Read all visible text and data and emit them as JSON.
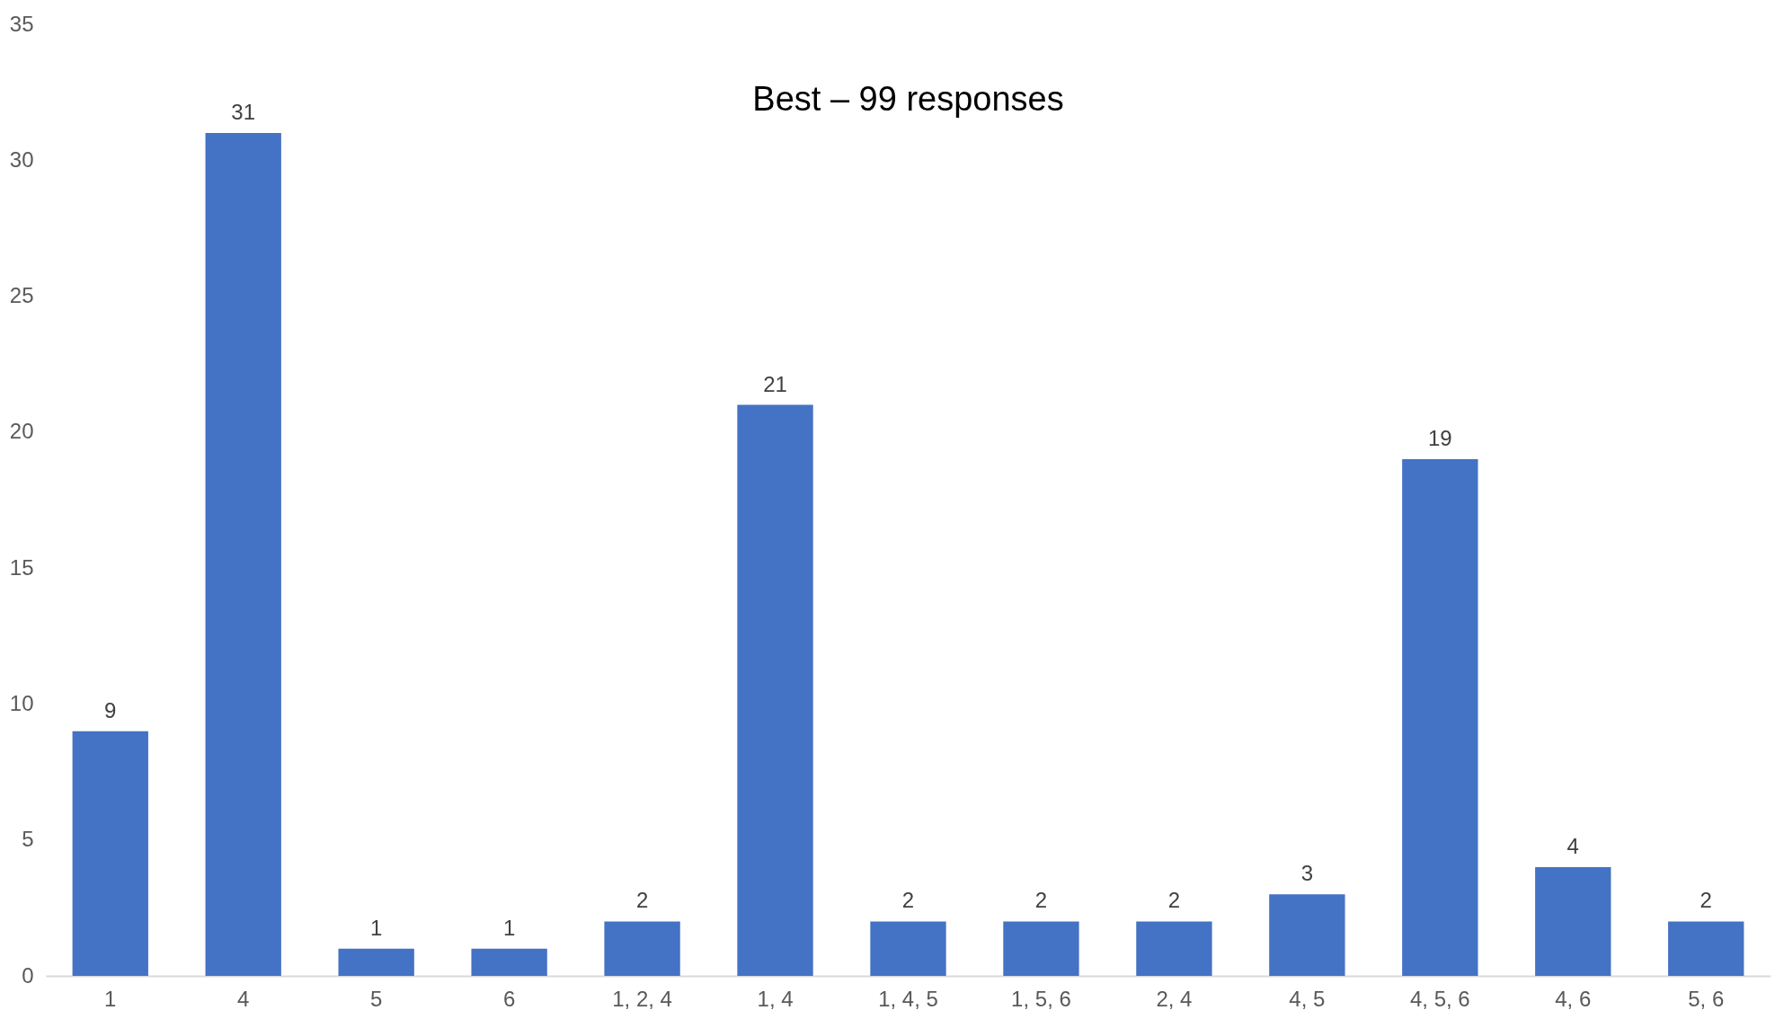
{
  "chart_data": {
    "type": "bar",
    "title": "Best – 99 responses",
    "categories": [
      "1",
      "4",
      "5",
      "6",
      "1, 2, 4",
      "1, 4",
      "1, 4, 5",
      "1, 5, 6",
      "2, 4",
      "4, 5",
      "4, 5, 6",
      "4, 6",
      "5, 6"
    ],
    "values": [
      9,
      31,
      1,
      1,
      2,
      21,
      2,
      2,
      2,
      3,
      19,
      4,
      2
    ],
    "color": "#4472c4",
    "ylim": [
      0,
      35
    ],
    "yticks": [
      0,
      5,
      10,
      15,
      20,
      25,
      30,
      35
    ],
    "data_labels": true
  }
}
